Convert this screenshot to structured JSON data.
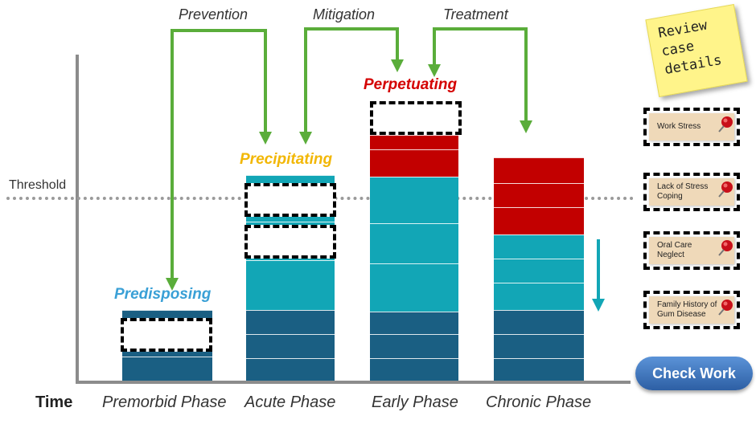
{
  "axis": {
    "time_label": "Time",
    "threshold_label": "Threshold"
  },
  "phases": [
    "Premorbid Phase",
    "Acute Phase",
    "Early Phase",
    "Chronic Phase"
  ],
  "factors": {
    "predisposing": "Predisposing",
    "precipitating": "Precipitating",
    "perpetuating": "Perpetuating"
  },
  "interventions": [
    "Prevention",
    "Mitigation",
    "Treatment"
  ],
  "sticky_note": "Review\ncase\ndetails",
  "cards": [
    "Work Stress",
    "Lack of Stress Coping",
    "Oral Care Neglect",
    "Family History of Gum Disease"
  ],
  "check_work": "Check Work",
  "colors": {
    "predisposing": "#1a5f83",
    "precipitating": "#12a6b6",
    "perpetuating": "#c20000",
    "arrow": "#5aad3a",
    "down_arrow": "#12a6b6"
  }
}
